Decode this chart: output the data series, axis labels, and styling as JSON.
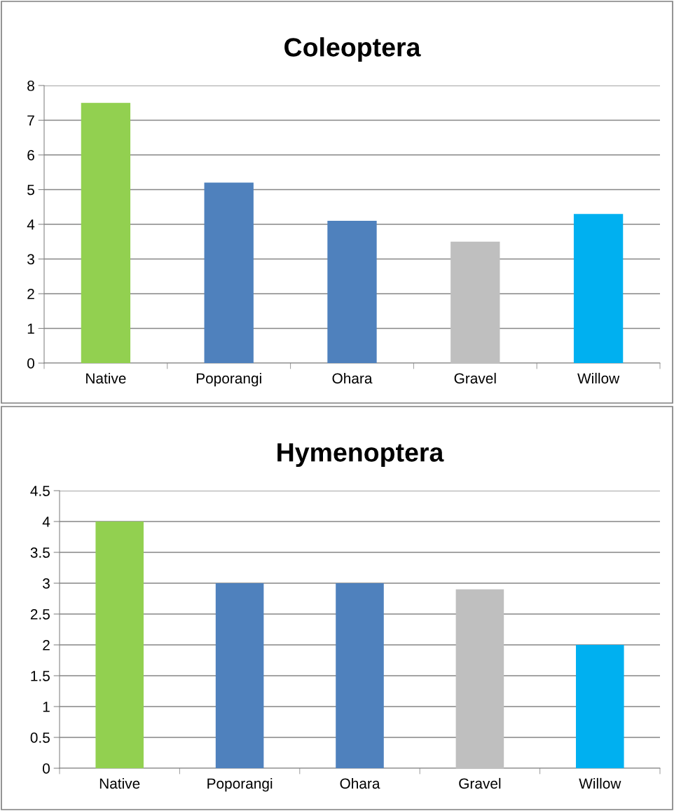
{
  "chart_data": [
    {
      "type": "bar",
      "title": "Coleoptera",
      "categories": [
        "Native",
        "Poporangi",
        "Ohara",
        "Gravel",
        "Willow"
      ],
      "values": [
        7.5,
        5.2,
        4.1,
        3.5,
        4.3
      ],
      "colors": [
        "#92d050",
        "#4f81bd",
        "#4f81bd",
        "#bfbfbf",
        "#00b0f0"
      ],
      "ylim": [
        0,
        8
      ],
      "yticks": [
        0,
        1,
        2,
        3,
        4,
        5,
        6,
        7,
        8
      ],
      "grid": "y",
      "legend": false
    },
    {
      "type": "bar",
      "title": "Hymenoptera",
      "categories": [
        "Native",
        "Poporangi",
        "Ohara",
        "Gravel",
        "Willow"
      ],
      "values": [
        4.0,
        3.0,
        3.0,
        2.9,
        2.0
      ],
      "colors": [
        "#92d050",
        "#4f81bd",
        "#4f81bd",
        "#bfbfbf",
        "#00b0f0"
      ],
      "ylim": [
        0,
        4.5
      ],
      "yticks": [
        0,
        0.5,
        1,
        1.5,
        2,
        2.5,
        3,
        3.5,
        4,
        4.5
      ],
      "grid": "y",
      "legend": false
    }
  ]
}
